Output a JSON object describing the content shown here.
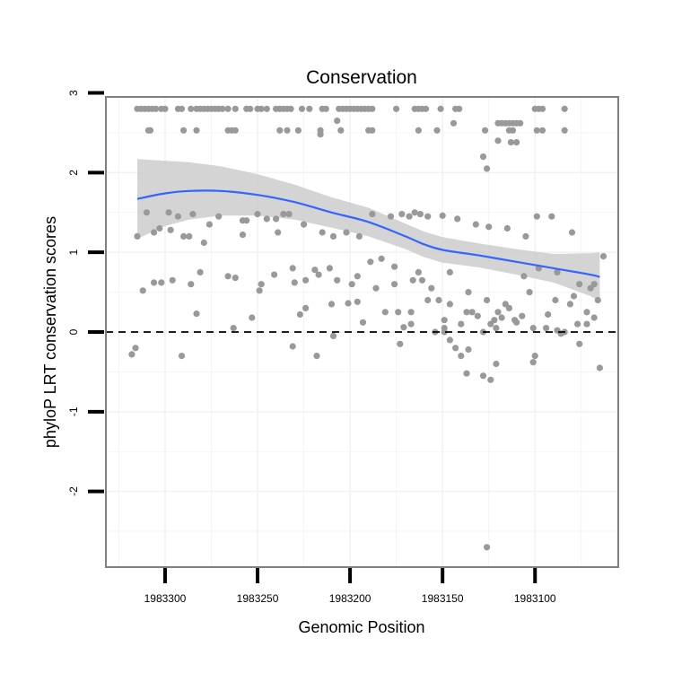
{
  "chart_data": {
    "type": "scatter",
    "title": "Conservation",
    "xlabel": "Genomic Position",
    "ylabel": "phyloP LRT conservation scores",
    "x_reversed": true,
    "xlim": [
      1983332,
      1983055
    ],
    "ylim": [
      -2.95,
      2.95
    ],
    "x_ticks": [
      1983300,
      1983250,
      1983200,
      1983150,
      1983100
    ],
    "x_tick_labels": [
      "1983300",
      "1983250",
      "1983200",
      "1983150",
      "1983100"
    ],
    "y_ticks": [
      -2,
      -1,
      0,
      1,
      2,
      3
    ],
    "y_tick_labels": [
      "-2",
      "-1",
      "0",
      "1",
      "2",
      "3"
    ],
    "grid": true,
    "reference_line": {
      "y": 0,
      "style": "dashed",
      "color": "#000000"
    },
    "colors": {
      "points": "#999999",
      "smooth_line": "#3366ff",
      "confidence_band": "#cccccc",
      "panel_border": "#7f7f7f"
    },
    "series": [
      {
        "kind": "points",
        "x": [
          1983315,
          1983313,
          1983311,
          1983309,
          1983307,
          1983305,
          1983302,
          1983300,
          1983293,
          1983291,
          1983286,
          1983283,
          1983281,
          1983279,
          1983277,
          1983275,
          1983273,
          1983271,
          1983269,
          1983266,
          1983262,
          1983256,
          1983254,
          1983250,
          1983248,
          1983245,
          1983240,
          1983238,
          1983236,
          1983234,
          1983232,
          1983226,
          1983222,
          1983215,
          1983213,
          1983206,
          1983204,
          1983202,
          1983200,
          1983198,
          1983196,
          1983194,
          1983192,
          1983190,
          1983188,
          1983175,
          1983165,
          1983163,
          1983161,
          1983159,
          1983151,
          1983143,
          1983141,
          1983120,
          1983118,
          1983116,
          1983114,
          1983112,
          1983110,
          1983108,
          1983100,
          1983098,
          1983096,
          1983084,
          1983309,
          1983308,
          1983290,
          1983283,
          1983266,
          1983264,
          1983262,
          1983238,
          1983234,
          1983228,
          1983216,
          1983205,
          1983190,
          1983188,
          1983163,
          1983153,
          1983127,
          1983114,
          1983112,
          1983099,
          1983096,
          1983084,
          1983216,
          1983207,
          1983144,
          1983128,
          1983126,
          1983120,
          1983113,
          1983110,
          1983315,
          1983303,
          1983298,
          1983293,
          1983290,
          1983285,
          1983256,
          1983250,
          1983245,
          1983240,
          1983233,
          1983225,
          1983215,
          1983209,
          1983202,
          1983195,
          1983188,
          1983178,
          1983172,
          1983168,
          1983165,
          1983162,
          1983158,
          1983150,
          1983142,
          1983132,
          1983125,
          1983115,
          1983105,
          1983099,
          1983091,
          1983080,
          1983312,
          1983306,
          1983296,
          1983286,
          1983276,
          1983266,
          1983258,
          1983248,
          1983241,
          1983231,
          1983224,
          1983217,
          1983207,
          1983196,
          1983186,
          1983176,
          1983166,
          1983156,
          1983146,
          1983136,
          1983126,
          1983116,
          1983106,
          1983098,
          1983088,
          1983076,
          1983068,
          1983310,
          1983297,
          1983281,
          1983262,
          1983249,
          1983230,
          1983219,
          1983211,
          1983199,
          1983183,
          1983174,
          1983163,
          1983152,
          1983137,
          1983124,
          1983111,
          1983103,
          1983089,
          1983079,
          1983070,
          1983066,
          1983302,
          1983287,
          1983271,
          1983258,
          1983239,
          1983224,
          1983210,
          1983196,
          1983181,
          1983167,
          1983146,
          1983134,
          1983120,
          1983107,
          1983093,
          1983081,
          1983072,
          1983316,
          1983306,
          1983291,
          1983279,
          1983253,
          1983236,
          1983227,
          1983209,
          1983193,
          1983176,
          1983161,
          1983149,
          1983140,
          1983131,
          1983122,
          1983114,
          1983101,
          1983088,
          1983077,
          1983318,
          1983283,
          1983263,
          1983231,
          1983218,
          1983201,
          1983189,
          1983173,
          1983158,
          1983149,
          1983140,
          1983128,
          1983121,
          1983110,
          1983100,
          1983086,
          1983065,
          1983137,
          1983128,
          1983121,
          1983146,
          1983154,
          1983124,
          1983118,
          1983149,
          1983143,
          1983136,
          1983171,
          1983167,
          1983101,
          1983094,
          1983084,
          1983076,
          1983072,
          1983068,
          1983063,
          1983126
        ],
        "y": [
          2.8,
          2.8,
          2.8,
          2.8,
          2.8,
          2.8,
          2.8,
          2.8,
          2.8,
          2.8,
          2.8,
          2.8,
          2.8,
          2.8,
          2.8,
          2.8,
          2.8,
          2.8,
          2.8,
          2.8,
          2.8,
          2.8,
          2.8,
          2.8,
          2.8,
          2.8,
          2.8,
          2.8,
          2.8,
          2.8,
          2.8,
          2.8,
          2.8,
          2.8,
          2.8,
          2.8,
          2.8,
          2.8,
          2.8,
          2.8,
          2.8,
          2.8,
          2.8,
          2.8,
          2.8,
          2.8,
          2.8,
          2.8,
          2.8,
          2.8,
          2.8,
          2.8,
          2.8,
          2.62,
          2.62,
          2.62,
          2.62,
          2.62,
          2.62,
          2.62,
          2.8,
          2.8,
          2.8,
          2.8,
          2.53,
          2.53,
          2.53,
          2.53,
          2.53,
          2.53,
          2.53,
          2.53,
          2.53,
          2.53,
          2.53,
          2.53,
          2.53,
          2.53,
          2.53,
          2.53,
          2.53,
          2.53,
          2.53,
          2.53,
          2.53,
          2.53,
          2.48,
          2.65,
          2.62,
          2.2,
          2.05,
          2.4,
          2.38,
          2.38,
          1.2,
          1.3,
          1.5,
          1.45,
          1.2,
          1.48,
          1.4,
          1.48,
          1.42,
          1.42,
          1.48,
          1.35,
          1.25,
          1.2,
          1.25,
          1.2,
          1.48,
          1.45,
          1.48,
          1.45,
          1.5,
          1.48,
          1.45,
          1.46,
          1.42,
          1.35,
          1.32,
          1.3,
          1.2,
          1.45,
          1.45,
          1.25,
          0.52,
          1.25,
          0.65,
          0.6,
          1.35,
          0.7,
          1.4,
          0.6,
          0.72,
          0.8,
          0.65,
          0.72,
          0.65,
          0.7,
          0.55,
          0.6,
          0.65,
          0.55,
          0.75,
          0.5,
          0.4,
          0.35,
          0.7,
          0.8,
          0.75,
          0.6,
          0.6,
          1.5,
          1.28,
          0.75,
          0.68,
          0.52,
          0.62,
          0.78,
          0.8,
          0.6,
          0.92,
          0.25,
          0.75,
          0.4,
          0.25,
          0.1,
          0.15,
          0.5,
          0.4,
          0.45,
          0.55,
          0.4,
          0.62,
          1.2,
          1.45,
          1.22,
          1.25,
          0.3,
          0.35,
          0.38,
          0.25,
          0.25,
          0.35,
          0.25,
          0.25,
          0.2,
          0.22,
          0.35,
          0.25,
          -0.2,
          0.62,
          -0.3,
          1.12,
          0.18,
          1.48,
          0.22,
          -0.05,
          0.12,
          0.82,
          0.65,
          0.15,
          0.1,
          0.2,
          0.15,
          0.3,
          0.05,
          0.02,
          0.1,
          -0.28,
          0.23,
          0.05,
          -0.18,
          -0.3,
          0.36,
          0.88,
          -0.15,
          0.4,
          0.0,
          -0.3,
          0.0,
          0.05,
          0.12,
          -0.3,
          -0.02,
          -0.45,
          -0.52,
          -0.55,
          -0.4,
          -0.1,
          0.0,
          -0.6,
          0.18,
          0.05,
          -0.2,
          -0.22,
          0.06,
          0.1,
          -0.38,
          0.05,
          0.0,
          -0.15,
          0.1,
          0.18,
          0.95,
          -2.7
        ]
      },
      {
        "kind": "smooth",
        "x": [
          1983315,
          1983300,
          1983287,
          1983270,
          1983250,
          1983230,
          1983210,
          1983190,
          1983170,
          1983160,
          1983150,
          1983130,
          1983110,
          1983090,
          1983070,
          1983065
        ],
        "y": [
          1.67,
          1.74,
          1.77,
          1.77,
          1.72,
          1.63,
          1.5,
          1.38,
          1.2,
          1.1,
          1.03,
          0.96,
          0.88,
          0.8,
          0.72,
          0.69
        ],
        "ci_lower": [
          1.17,
          1.33,
          1.41,
          1.46,
          1.46,
          1.41,
          1.31,
          1.2,
          1.04,
          0.94,
          0.87,
          0.81,
          0.72,
          0.62,
          0.45,
          0.38
        ],
        "ci_upper": [
          2.17,
          2.15,
          2.13,
          2.08,
          1.98,
          1.85,
          1.69,
          1.56,
          1.36,
          1.26,
          1.19,
          1.11,
          1.04,
          0.98,
          0.99,
          1.0
        ]
      }
    ]
  }
}
